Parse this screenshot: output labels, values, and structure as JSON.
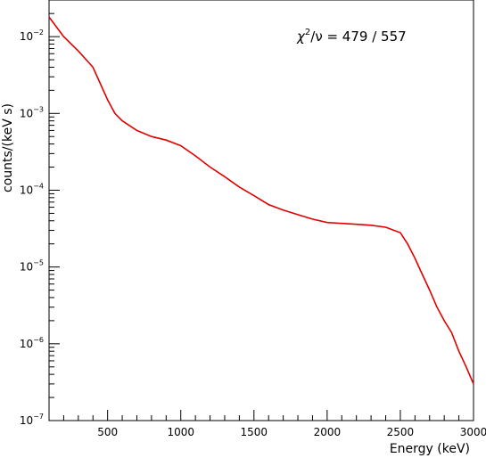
{
  "chart_data": {
    "type": "line",
    "title": "",
    "xlabel": "Energy (keV)",
    "ylabel": "counts/(keV s)",
    "xlim": [
      100,
      3000
    ],
    "ylim": [
      1e-07,
      0.03
    ],
    "y_scale": "log",
    "grid": false,
    "x_ticks": [
      500,
      1000,
      1500,
      2000,
      2500,
      3000
    ],
    "x_tick_labels": [
      "500",
      "1000",
      "1500",
      "2000",
      "2500",
      "3000"
    ],
    "y_ticks": [
      1e-07,
      1e-06,
      1e-05,
      0.0001,
      0.001,
      0.01
    ],
    "y_tick_labels": [
      {
        "base": "10",
        "exp": "−7"
      },
      {
        "base": "10",
        "exp": "−6"
      },
      {
        "base": "10",
        "exp": "−5"
      },
      {
        "base": "10",
        "exp": "−4"
      },
      {
        "base": "10",
        "exp": "−3"
      },
      {
        "base": "10",
        "exp": "−2"
      }
    ],
    "annotation": {
      "chi": "χ",
      "chi_exp": "2",
      "rest": "/ν = 479 / 557"
    },
    "series": [
      {
        "color": "#000000",
        "style": "histogram",
        "x": [
          100,
          200,
          300,
          400,
          500,
          550,
          600,
          700,
          800,
          900,
          1000,
          1100,
          1200,
          1300,
          1400,
          1500,
          1600,
          1700,
          1800,
          1900,
          2000,
          2100,
          2200,
          2300,
          2400,
          2500,
          2550,
          2600,
          2650,
          2700,
          2750,
          2800,
          2850,
          2900,
          2950,
          3000
        ],
        "values": [
          0.018,
          0.01,
          0.0065,
          0.004,
          0.0015,
          0.001,
          0.0008,
          0.0006,
          0.0005,
          0.00045,
          0.00038,
          0.00028,
          0.0002,
          0.00015,
          0.00011,
          8.5e-05,
          6.5e-05,
          5.5e-05,
          4.8e-05,
          4.2e-05,
          3.8e-05,
          3.7e-05,
          3.6e-05,
          3.5e-05,
          3.3e-05,
          2.8e-05,
          2e-05,
          1.3e-05,
          8e-06,
          5e-06,
          3e-06,
          2e-06,
          1.4e-06,
          8e-07,
          5e-07,
          3e-07
        ]
      },
      {
        "color": "#e00000",
        "style": "line",
        "x": [
          100,
          200,
          300,
          400,
          500,
          550,
          600,
          700,
          800,
          900,
          1000,
          1100,
          1200,
          1300,
          1400,
          1500,
          1600,
          1700,
          1800,
          1900,
          2000,
          2100,
          2200,
          2300,
          2400,
          2500,
          2550,
          2600,
          2650,
          2700,
          2750,
          2800,
          2850,
          2900,
          2950,
          3000
        ],
        "values": [
          0.018,
          0.01,
          0.0065,
          0.004,
          0.0015,
          0.001,
          0.0008,
          0.0006,
          0.0005,
          0.00045,
          0.00038,
          0.00028,
          0.0002,
          0.00015,
          0.00011,
          8.5e-05,
          6.5e-05,
          5.5e-05,
          4.8e-05,
          4.2e-05,
          3.8e-05,
          3.7e-05,
          3.6e-05,
          3.5e-05,
          3.3e-05,
          2.8e-05,
          2e-05,
          1.3e-05,
          8e-06,
          5e-06,
          3e-06,
          2e-06,
          1.4e-06,
          8e-07,
          5e-07,
          3e-07
        ]
      }
    ]
  }
}
